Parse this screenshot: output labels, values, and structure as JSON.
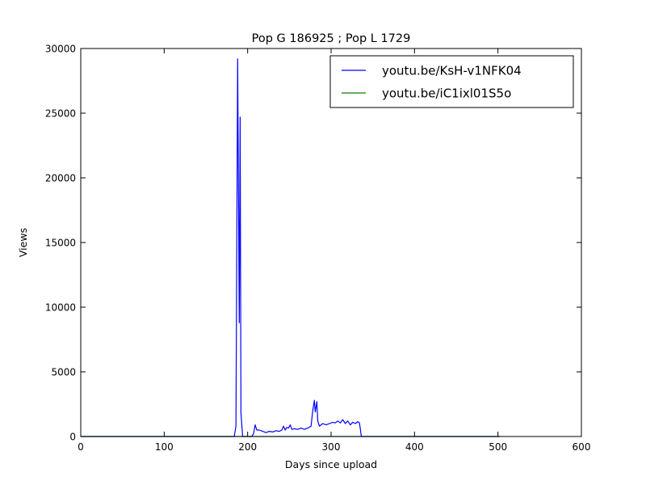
{
  "chart_data": {
    "type": "line",
    "title": "Pop G 186925 ; Pop L 1729",
    "xlabel": "Days since upload",
    "ylabel": "Views",
    "xlim": [
      0,
      600
    ],
    "ylim": [
      0,
      30000
    ],
    "xticks": [
      "0",
      "100",
      "200",
      "300",
      "400",
      "500",
      "600"
    ],
    "yticks": [
      "0",
      "5000",
      "10000",
      "15000",
      "20000",
      "25000",
      "30000"
    ],
    "grid": false,
    "legend_position": "top-right",
    "series": [
      {
        "name": "youtu.be/KsH-v1NFK04",
        "color": "#0000ff",
        "x": [
          0,
          184,
          186,
          188,
          190,
          191,
          192,
          194,
          195,
          198,
          200,
          205,
          207,
          209,
          211,
          214,
          218,
          222,
          226,
          230,
          234,
          238,
          241,
          243,
          245,
          247,
          249,
          251,
          253,
          256,
          260,
          264,
          268,
          272,
          276,
          278,
          280,
          281,
          283,
          284,
          286,
          288,
          290,
          294,
          298,
          302,
          305,
          308,
          311,
          314,
          317,
          320,
          323,
          326,
          329,
          332,
          334,
          335,
          336,
          337,
          338,
          340,
          360,
          400,
          450,
          500,
          502
        ],
        "y": [
          0,
          0,
          800,
          29200,
          8800,
          24700,
          1800,
          0,
          0,
          0,
          0,
          0,
          200,
          900,
          500,
          500,
          400,
          300,
          400,
          350,
          450,
          400,
          500,
          800,
          500,
          700,
          650,
          900,
          550,
          600,
          550,
          650,
          550,
          650,
          800,
          2000,
          2800,
          1900,
          2700,
          1200,
          800,
          900,
          1000,
          900,
          1000,
          1100,
          1050,
          1200,
          1050,
          1300,
          1000,
          1200,
          900,
          1100,
          1000,
          1150,
          1050,
          600,
          100,
          0,
          0,
          0,
          0,
          0,
          0,
          0,
          0
        ]
      },
      {
        "name": "youtu.be/iC1ixl01S5o",
        "color": "#008000",
        "x": [
          0,
          100,
          200,
          300,
          400,
          502
        ],
        "y": [
          0,
          0,
          0,
          0,
          0,
          0
        ]
      }
    ]
  }
}
